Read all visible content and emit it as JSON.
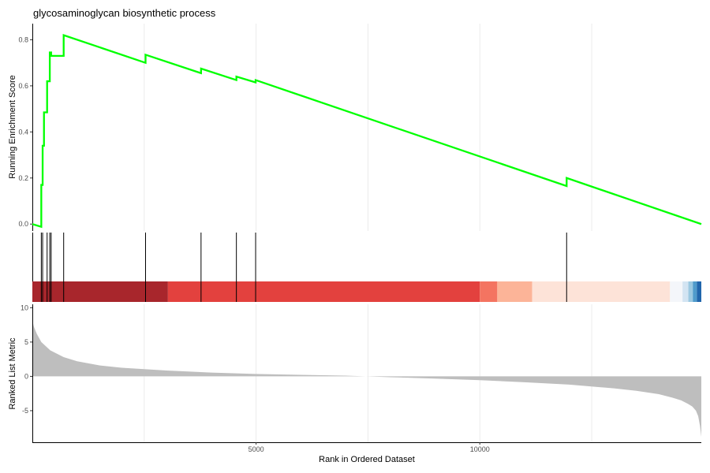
{
  "chart_data": {
    "type": "line",
    "title": "glycosaminoglycan biosynthetic process",
    "xlabel": "Rank in Ordered Dataset",
    "xlim": [
      0,
      14950
    ],
    "x_ticks": [
      5000,
      10000
    ],
    "x_gridlines": [
      2500,
      5000,
      7500,
      10000,
      12500
    ],
    "grid": "vertical major and minor only",
    "legend": "none",
    "panels": {
      "enrichment": {
        "ylabel": "Running Enrichment Score",
        "ylim": [
          -0.03,
          0.87
        ],
        "y_ticks": [
          0.0,
          0.2,
          0.4,
          0.6,
          0.8
        ],
        "line_color": "#00ff00",
        "series": [
          {
            "x": [
              0,
              200,
              200,
              230,
              230,
              260,
              260,
              330,
              330,
              390,
              390,
              420,
              420,
              700,
              700,
              2530,
              2530,
              3770,
              3770,
              4560,
              4560,
              4990,
              4990,
              11940,
              11940,
              14950
            ],
            "y": [
              0.0,
              -0.012,
              0.17,
              0.17,
              0.34,
              0.34,
              0.485,
              0.485,
              0.62,
              0.62,
              0.745,
              0.745,
              0.73,
              0.73,
              0.82,
              0.7,
              0.735,
              0.655,
              0.675,
              0.625,
              0.64,
              0.615,
              0.625,
              0.165,
              0.2,
              0.0
            ]
          }
        ]
      },
      "hits": {
        "positions": [
          200,
          230,
          330,
          390,
          420,
          700,
          2530,
          3770,
          4560,
          4990,
          11940
        ],
        "tick_color": "#000000",
        "color_band": [
          {
            "from": 0,
            "to": 3030,
            "color": "#a8262c"
          },
          {
            "from": 3030,
            "to": 10000,
            "color": "#e3413e"
          },
          {
            "from": 10000,
            "to": 10390,
            "color": "#f47461"
          },
          {
            "from": 10390,
            "to": 11170,
            "color": "#fcb498"
          },
          {
            "from": 11170,
            "to": 14250,
            "color": "#fde3d8"
          },
          {
            "from": 14250,
            "to": 14530,
            "color": "#f4f6fa"
          },
          {
            "from": 14530,
            "to": 14660,
            "color": "#d3e4f2"
          },
          {
            "from": 14660,
            "to": 14760,
            "color": "#9cc9e1"
          },
          {
            "from": 14760,
            "to": 14850,
            "color": "#4f9bcb"
          },
          {
            "from": 14850,
            "to": 14950,
            "color": "#2166ac"
          }
        ]
      },
      "ranked": {
        "ylabel": "Ranked List Metric",
        "ylim": [
          -9.6,
          10.5
        ],
        "y_ticks": [
          -5,
          0,
          5,
          10
        ],
        "fill_color": "#bebebe",
        "series": [
          {
            "x": [
              0,
              30,
              100,
              200,
              400,
              700,
              1000,
              1500,
              2000,
              3000,
              4000,
              5000,
              6000,
              7000,
              7450,
              8000,
              9000,
              10000,
              11000,
              12000,
              13000,
              13500,
              14000,
              14300,
              14500,
              14650,
              14750,
              14830,
              14880,
              14920,
              14950
            ],
            "y": [
              8.2,
              7.3,
              6.2,
              5.0,
              3.8,
              2.8,
              2.2,
              1.6,
              1.25,
              0.85,
              0.55,
              0.35,
              0.22,
              0.1,
              0.0,
              -0.12,
              -0.32,
              -0.55,
              -0.85,
              -1.2,
              -1.75,
              -2.1,
              -2.6,
              -3.1,
              -3.5,
              -4.0,
              -4.4,
              -5.0,
              -5.8,
              -7.2,
              -8.8
            ]
          }
        ]
      }
    }
  }
}
